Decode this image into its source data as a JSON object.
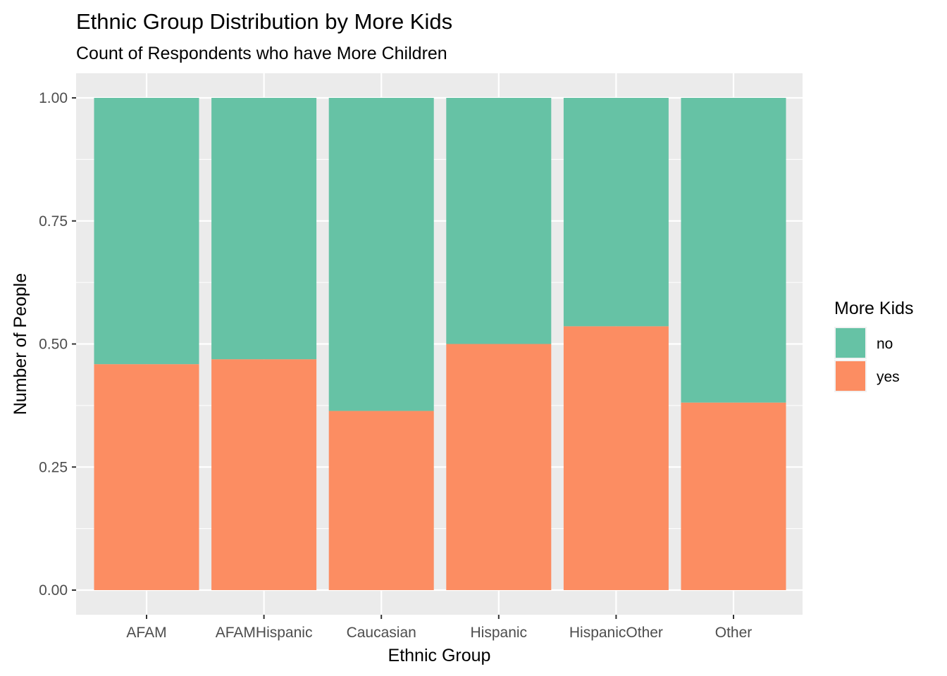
{
  "chart_data": {
    "type": "bar",
    "stacked": true,
    "position": "fill",
    "title": "Ethnic Group Distribution by More Kids",
    "subtitle": "Count of Respondents who have More Children",
    "xlabel": "Ethnic Group",
    "ylabel": "Number of People",
    "ylim": [
      0,
      1
    ],
    "yticks": [
      "0.00",
      "0.25",
      "0.50",
      "0.75",
      "1.00"
    ],
    "ytick_values": [
      0,
      0.25,
      0.5,
      0.75,
      1.0
    ],
    "grid": true,
    "categories": [
      "AFAM",
      "AFAMHispanic",
      "Caucasian",
      "Hispanic",
      "HispanicOther",
      "Other"
    ],
    "series": [
      {
        "name": "no",
        "color": "#66C2A5",
        "values": [
          0.541,
          0.531,
          0.636,
          0.5,
          0.464,
          0.619
        ]
      },
      {
        "name": "yes",
        "color": "#FC8D62",
        "values": [
          0.459,
          0.469,
          0.364,
          0.5,
          0.536,
          0.381
        ]
      }
    ],
    "legend": {
      "title": "More Kids",
      "placement": "right"
    }
  }
}
